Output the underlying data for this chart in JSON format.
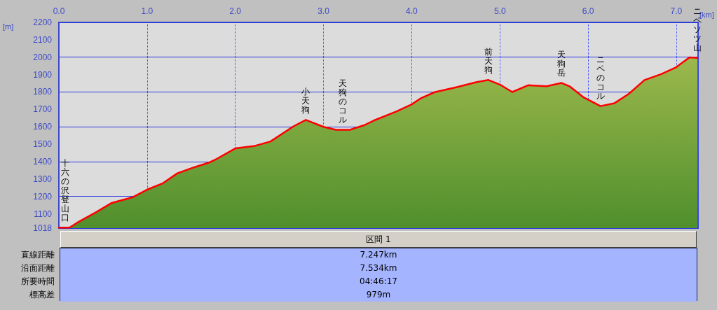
{
  "chart_data": {
    "type": "area",
    "xlabel": "[km]",
    "ylabel": "[m]",
    "x": [
      0,
      0.12,
      0.23,
      0.42,
      0.6,
      0.84,
      1.0,
      1.18,
      1.34,
      1.53,
      1.71,
      1.79,
      2.0,
      2.21,
      2.4,
      2.66,
      2.8,
      3.0,
      3.14,
      3.3,
      3.46,
      3.57,
      3.83,
      4.0,
      4.1,
      4.26,
      4.52,
      4.73,
      4.87,
      5.0,
      5.14,
      5.32,
      5.53,
      5.7,
      5.79,
      5.95,
      6.14,
      6.3,
      6.46,
      6.64,
      6.83,
      6.99,
      7.15,
      7.24
    ],
    "series": [
      {
        "color": "#ff0000",
        "values": [
          1021,
          1021,
          1056,
          1109,
          1163,
          1196,
          1239,
          1276,
          1332,
          1367,
          1396,
          1416,
          1476,
          1489,
          1516,
          1603,
          1640,
          1600,
          1583,
          1583,
          1609,
          1636,
          1689,
          1729,
          1763,
          1799,
          1829,
          1856,
          1869,
          1843,
          1800,
          1839,
          1833,
          1852,
          1833,
          1769,
          1719,
          1736,
          1789,
          1869,
          1903,
          1940,
          1999,
          1996
        ]
      }
    ],
    "xlim": [
      0,
      7.247
    ],
    "xticks": [
      {
        "value": 0,
        "label": "0.0"
      },
      {
        "value": 1,
        "label": "1.0"
      },
      {
        "value": 2,
        "label": "2.0"
      },
      {
        "value": 3,
        "label": "3.0"
      },
      {
        "value": 4,
        "label": "4.0"
      },
      {
        "value": 5,
        "label": "5.0"
      },
      {
        "value": 6,
        "label": "6.0"
      },
      {
        "value": 7,
        "label": "7.0"
      }
    ],
    "ylim": [
      1018,
      2200
    ],
    "yticks": [
      1018,
      1100,
      1200,
      1300,
      1400,
      1500,
      1600,
      1700,
      1800,
      1900,
      2000,
      2100,
      2200
    ],
    "grid": true,
    "marker": "none",
    "line_style": "solid",
    "annotations": [
      {
        "text": "十六の沢登山口",
        "x": 0,
        "y": 1021
      },
      {
        "text": "小天狗",
        "x": 2.8,
        "y": 1640
      },
      {
        "text": "天狗のコル",
        "x": 3.22,
        "y": 1583
      },
      {
        "text": "前天狗",
        "x": 4.87,
        "y": 1869
      },
      {
        "text": "天狗岳",
        "x": 5.7,
        "y": 1852
      },
      {
        "text": "ニペのコル",
        "x": 6.14,
        "y": 1719
      },
      {
        "text": "ニペソツ山",
        "x": 7.24,
        "y": 1996
      },
      "区間 1",
      "直線距離",
      "7.247km",
      "沿面距離",
      "7.534km",
      "所要時間",
      "04:46:17",
      "標高差",
      "979m"
    ]
  }
}
